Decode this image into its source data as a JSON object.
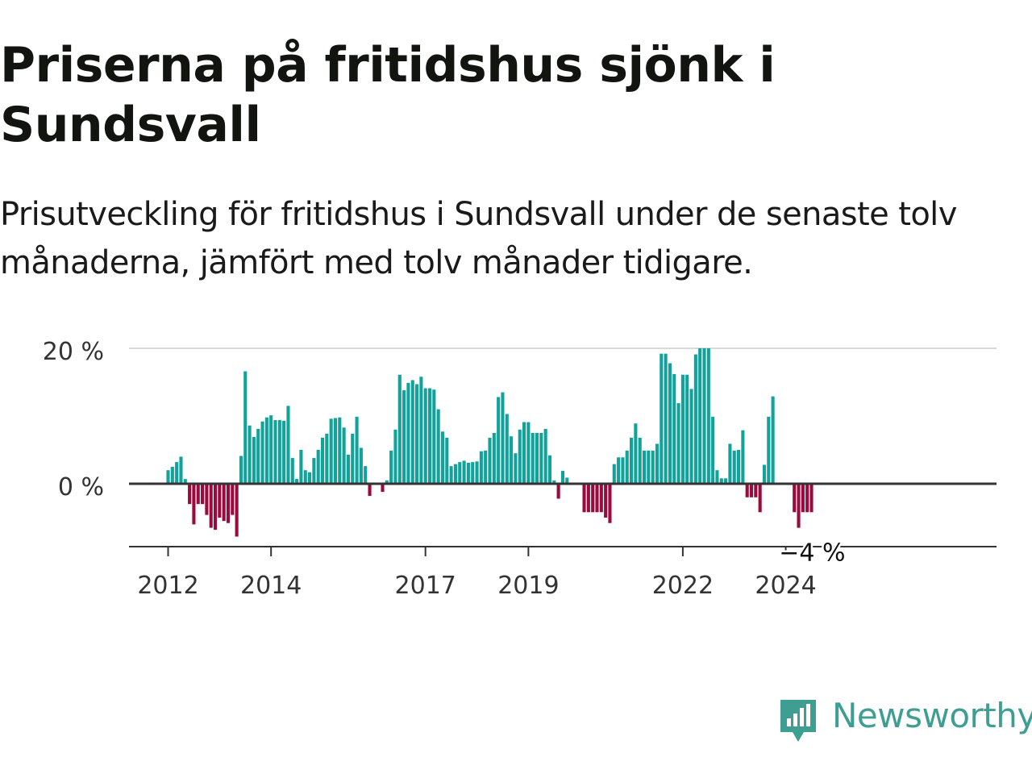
{
  "title": "Priserna på fritidshus sjönk i Sundsvall",
  "subtitle": "Prisutveckling för fritidshus i Sundsvall under de senaste tolv månaderna, jämfört med tolv månader tidigare.",
  "brand": {
    "name": "Newsworthy",
    "icon": "bar-chart-speech-bubble-icon",
    "color": "#3e9e92"
  },
  "colors": {
    "positive": "#11a39b",
    "negative": "#9b0a3c",
    "zero_line": "#333333",
    "grid": "#d9d9d9"
  },
  "chart_data": {
    "type": "bar",
    "title": "Priserna på fritidshus sjönk i Sundsvall",
    "subtitle": "Prisutveckling för fritidshus i Sundsvall under de senaste tolv månaderna, jämfört med tolv månader tidigare.",
    "xlabel": "",
    "ylabel": "",
    "ylim": [
      -9.5,
      20
    ],
    "y_ticks": [
      {
        "value": 0,
        "label": "0 %"
      },
      {
        "value": 20,
        "label": "20 %"
      }
    ],
    "x_ticks": [
      {
        "label": "2012",
        "index": 0
      },
      {
        "label": "2014",
        "index": 24
      },
      {
        "label": "2017",
        "index": 60
      },
      {
        "label": "2019",
        "index": 84
      },
      {
        "label": "2022",
        "index": 120
      },
      {
        "label": "2024",
        "index": 144
      }
    ],
    "first_period": "2012-01",
    "frequency": "monthly",
    "grid": true,
    "legend": "none",
    "last_label": "−4 %",
    "values": [
      2,
      2.5,
      3.2,
      4,
      0.7,
      -3,
      -6,
      -3,
      -3,
      -4.6,
      -6.5,
      -6.8,
      -5,
      -5.5,
      -5.8,
      -4.6,
      -7.8,
      4.1,
      16.6,
      8.6,
      6.9,
      8.1,
      9.2,
      9.8,
      10.1,
      9.4,
      9.4,
      9.3,
      11.5,
      3.8,
      0.7,
      5,
      2,
      1.7,
      3.8,
      5,
      6.8,
      7.4,
      9.6,
      9.7,
      9.8,
      8.3,
      4.3,
      7.4,
      9.9,
      5.3,
      2.6,
      -1.8,
      0,
      0,
      -1.2,
      0.5,
      4.9,
      8,
      16.1,
      13.8,
      14.9,
      15.3,
      14.7,
      15.8,
      14.1,
      14.1,
      13.9,
      11,
      7.7,
      6.8,
      2.6,
      2.9,
      3.2,
      3.4,
      3.1,
      3.2,
      3.3,
      4.8,
      4.9,
      6.8,
      7.5,
      12.8,
      13.5,
      10.3,
      7,
      4.5,
      8,
      9.1,
      9.1,
      7.5,
      7.5,
      7.5,
      8.1,
      4.2,
      0.5,
      -2.2,
      1.9,
      0.9,
      0,
      0,
      0,
      -4.2,
      -4.2,
      -4.2,
      -4.2,
      -4.2,
      -5,
      -5.8,
      2.9,
      3.9,
      3.9,
      4.9,
      6.8,
      8.9,
      6.8,
      4.9,
      4.9,
      4.9,
      5.9,
      19.2,
      19.2,
      17.8,
      16.2,
      11.9,
      16.1,
      16.1,
      14,
      19.1,
      20,
      20,
      20,
      9.9,
      2,
      0.8,
      0.8,
      5.9,
      4.9,
      5,
      7.9,
      -2,
      -2,
      -2,
      -4.2,
      2.8,
      9.9,
      12.9,
      0,
      0,
      0,
      0,
      -4.2,
      -6.5,
      -4.2,
      -4.2,
      -4.2
    ]
  }
}
